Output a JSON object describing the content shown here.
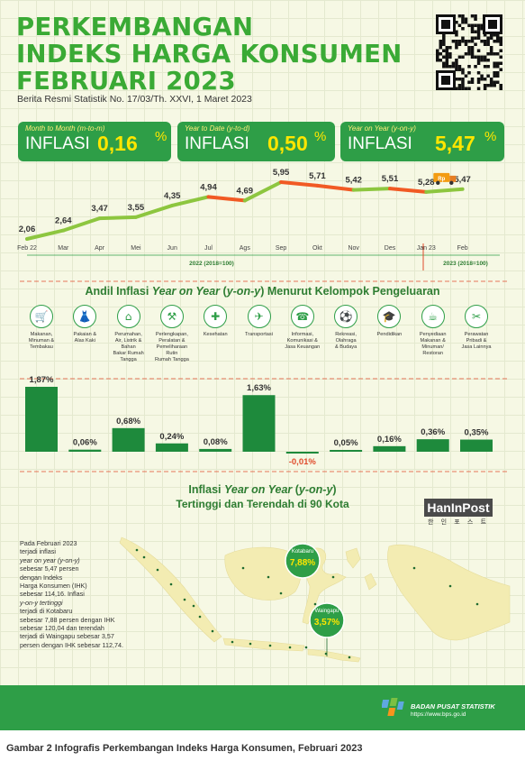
{
  "title": {
    "line1": "PERKEMBANGAN",
    "line2": "INDEKS HARGA KONSUMEN",
    "line3": "FEBRUARI 2023",
    "subtitle": "Berita Resmi Statistik No. 17/03/Th. XXVI, 1 Maret 2023"
  },
  "boxes": [
    {
      "label": "Month to Month (m-to-m)",
      "inflasi": "INFLASI",
      "value": "0,16",
      "pct": "%"
    },
    {
      "label": "Year to Date (y-to-d)",
      "inflasi": "INFLASI",
      "value": "0,50",
      "pct": "%"
    },
    {
      "label": "Year on Year (y-on-y)",
      "inflasi": "INFLASI",
      "value": "5,47",
      "pct": "%"
    }
  ],
  "chart_data": [
    {
      "type": "line",
      "x": [
        "Feb 22",
        "Mar",
        "Apr",
        "Mei",
        "Jun",
        "Jul",
        "Ags",
        "Sep",
        "Okt",
        "Nov",
        "Des",
        "Jan 23",
        "Feb"
      ],
      "series": [
        {
          "values_label": [
            "2,06",
            "2,64",
            "3,47",
            "3,55",
            "4,35",
            "4,94",
            "4,69",
            "5,95",
            "5,71",
            "5,42",
            "5,51",
            "5,28",
            "5,47"
          ],
          "values": [
            2.06,
            2.64,
            3.47,
            3.55,
            4.35,
            4.94,
            4.69,
            5.95,
            5.71,
            5.42,
            5.51,
            5.28,
            5.47
          ]
        }
      ],
      "period_labels": [
        "2022 (2018=100)",
        "2023 (2018=100)"
      ],
      "colors": {
        "up": "#8dc63f",
        "down": "#f15a24"
      },
      "truck_text": "Rp"
    },
    {
      "type": "bar",
      "title_parts": [
        "Andil Inflasi ",
        "Year on Year",
        " (",
        "y-on-y",
        ") Menurut Kelompok Pengeluaran"
      ],
      "categories": [
        "Makanan, Minuman & Tembakau",
        "Pakaian & Alas Kaki",
        "Perumahan, Air, Listrik & Bahan Bakar Rumah Tangga",
        "Perlengkapan, Peralatan & Pemeliharaan Rutin Rumah Tangga",
        "Kesehatan",
        "Transportasi",
        "Informasi, Komunikasi & Jasa Keuangan",
        "Rekreasi, Olahraga & Budaya",
        "Pendidikan",
        "Penyediaan Makanan & Minuman/ Restoran",
        "Perawatan Pribadi & Jasa Lainnya"
      ],
      "category_lines": [
        [
          "Makanan,",
          "Minuman &",
          "Tembakau"
        ],
        [
          "Pakaian &",
          "Alas Kaki"
        ],
        [
          "Perumahan,",
          "Air, Listrik &",
          "Bahan",
          "Bakar Rumah",
          "Tangga"
        ],
        [
          "Perlengkapan,",
          "Peralatan &",
          "Pemeliharaan",
          "Rutin",
          "Rumah Tangga"
        ],
        [
          "Kesehatan"
        ],
        [
          "Transportasi"
        ],
        [
          "Informasi,",
          "Komunikasi &",
          "Jasa Keuangan"
        ],
        [
          "Rekreasi,",
          "Olahraga",
          "& Budaya"
        ],
        [
          "Pendidikan"
        ],
        [
          "Penyediaan",
          "Makanan &",
          "Minuman/",
          "Restoran"
        ],
        [
          "Perawatan",
          "Pribadi &",
          "Jasa Lainnya"
        ]
      ],
      "values": [
        1.87,
        0.06,
        0.68,
        0.24,
        0.08,
        1.63,
        -0.01,
        0.05,
        0.16,
        0.36,
        0.35
      ],
      "value_labels": [
        "1,87%",
        "0,06%",
        "0,68%",
        "0,24%",
        "0,08%",
        "1,63%",
        "-0,01%",
        "0,05%",
        "0,16%",
        "0,36%",
        "0,35%"
      ],
      "icons": [
        "basket-icon",
        "dress-icon",
        "house-icon",
        "tools-icon",
        "medical-kit-icon",
        "airplane-icon",
        "smartphone-icon",
        "sport-icon",
        "graduation-cap-icon",
        "food-service-icon",
        "personal-care-icon"
      ],
      "bar_color": "#1e8a3c"
    }
  ],
  "section3": {
    "title1_parts": [
      "Inflasi ",
      "Year on Year",
      " (",
      "y-on-y",
      ")"
    ],
    "title2": "Tertinggi dan Terendah di 90 Kota",
    "brand": "HanInPost",
    "brand_sub": "한 인 포 스 트",
    "paragraph": [
      "Pada Februari 2023",
      "terjadi inflasi",
      "year on year (y-on-y)",
      "sebesar 5,47 persen",
      "dengan Indeks",
      "Harga Konsumen (IHK)",
      "sebesar 114,16. Inflasi",
      "y-on-y tertinggi",
      "terjadi di Kotabaru",
      "sebesar 7,88 persen dengan IHK",
      "sebesar 120,04 dan terendah",
      "terjadi di Waingapu sebesar 3,57",
      "persen dengan IHK sebesar 112,74."
    ],
    "highest": {
      "city": "Kotabaru",
      "value": "7,88%"
    },
    "lowest": {
      "city": "Waingapu",
      "value": "3,57%"
    }
  },
  "footer": {
    "agency": "BADAN PUSAT STATISTIK",
    "url": "https://www.bps.go.id",
    "caption": "Gambar 2   Infografis Perkembangan Indeks Harga Konsumen, Februari 2023"
  },
  "colors": {
    "green": "#3aaa35",
    "dark_green": "#2e9e47",
    "yellow": "#ffe600",
    "orange": "#f15a24",
    "light_green": "#8dc63f"
  }
}
